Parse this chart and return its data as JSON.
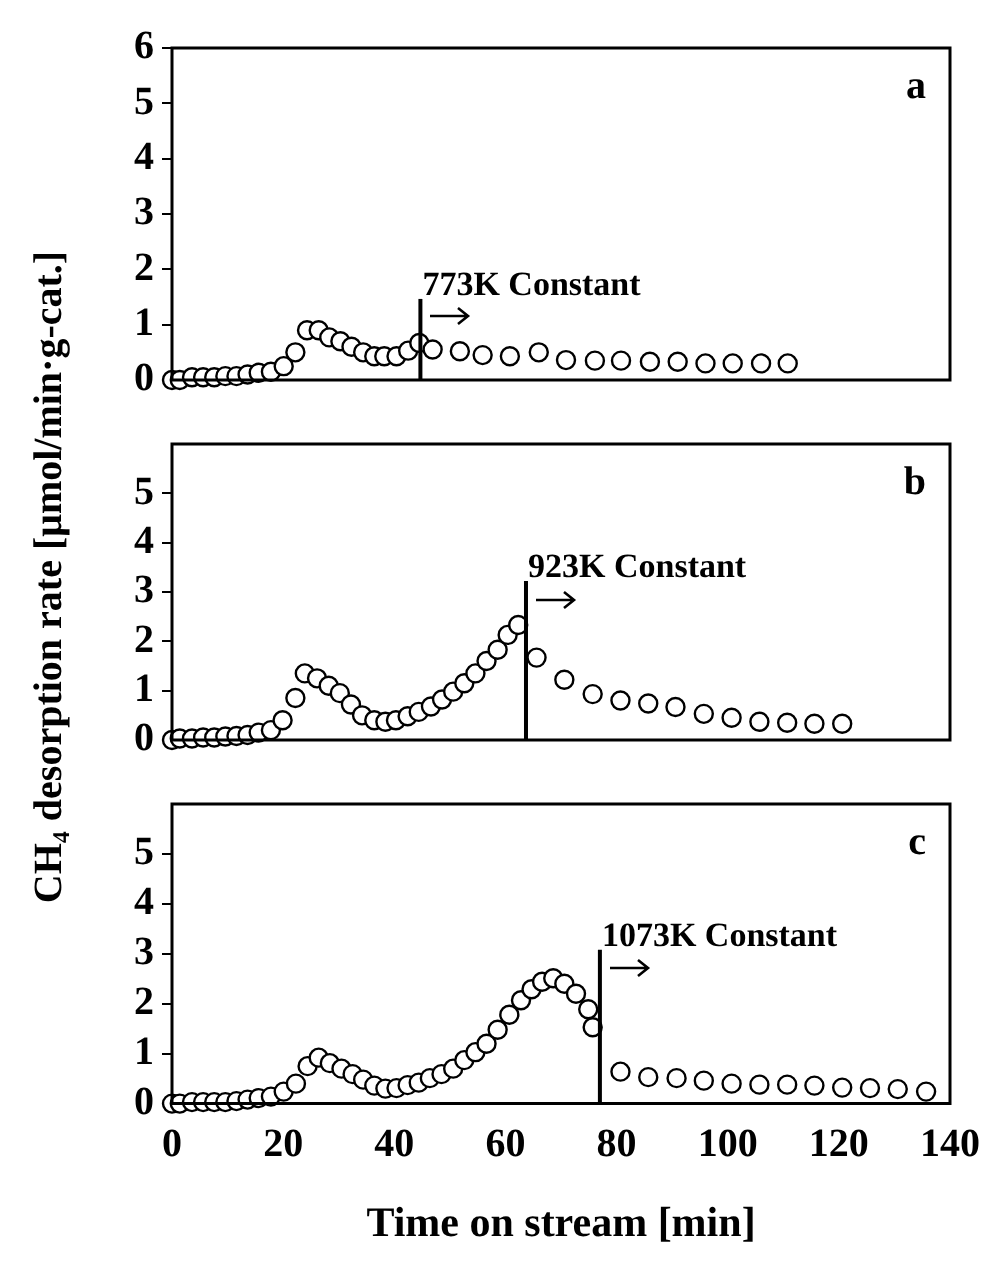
{
  "chart_data": [
    {
      "type": "scatter",
      "annotations": [
        "a"
      ],
      "xlim": [
        0,
        140
      ],
      "xticks": [
        0,
        20,
        40,
        60,
        80,
        100,
        120,
        140
      ],
      "ylim": [
        0,
        6
      ],
      "yticks": [
        0,
        1,
        2,
        3,
        4,
        5,
        6
      ],
      "tick_labels": "y",
      "marker": "circle",
      "grid": false,
      "legend": false,
      "ref_lines": [
        {
          "axis": "x",
          "value": 44.7,
          "label": "773K Constant"
        }
      ],
      "series": [
        {
          "color": "#000000",
          "x": [
            0,
            1.4,
            3.6,
            5.6,
            7.6,
            9.6,
            11.6,
            13.6,
            15.6,
            17.8,
            20.1,
            22.2,
            24.3,
            26.4,
            28.3,
            30.3,
            32.3,
            34.4,
            36.4,
            38.2,
            40.4,
            42.5,
            44.5,
            46.9,
            51.8,
            55.9,
            60.8,
            66,
            70.9,
            76.1,
            80.8,
            86,
            91,
            96,
            100.9,
            106,
            110.8
          ],
          "values": [
            0,
            0,
            0.05,
            0.05,
            0.05,
            0.07,
            0.07,
            0.1,
            0.13,
            0.15,
            0.25,
            0.5,
            0.9,
            0.9,
            0.77,
            0.7,
            0.6,
            0.5,
            0.43,
            0.43,
            0.43,
            0.53,
            0.67,
            0.55,
            0.52,
            0.45,
            0.43,
            0.5,
            0.36,
            0.35,
            0.35,
            0.33,
            0.33,
            0.3,
            0.3,
            0.3,
            0.3
          ]
        }
      ]
    },
    {
      "type": "scatter",
      "annotations": [
        "b"
      ],
      "ylabel": "CH₄ desorption rate [μmol/min·g-cat.]",
      "xlim": [
        0,
        140
      ],
      "xticks": [
        0,
        20,
        40,
        60,
        80,
        100,
        120,
        140
      ],
      "ylim": [
        0,
        6
      ],
      "yticks": [
        0,
        1,
        2,
        3,
        4,
        5
      ],
      "tick_labels": "y",
      "marker": "circle",
      "grid": false,
      "legend": false,
      "ref_lines": [
        {
          "axis": "x",
          "value": 63.7,
          "label": "923K Constant"
        }
      ],
      "series": [
        {
          "color": "#000000",
          "x": [
            0,
            1.4,
            3.6,
            5.6,
            7.6,
            9.6,
            11.6,
            13.6,
            15.6,
            17.8,
            19.9,
            22.2,
            23.9,
            26.1,
            28.2,
            30.2,
            32.2,
            34.2,
            36.4,
            38.4,
            40.3,
            42.4,
            44.4,
            46.6,
            48.6,
            50.6,
            52.6,
            54.6,
            56.6,
            58.6,
            60.4,
            62.3,
            65.6,
            70.6,
            75.7,
            80.7,
            85.7,
            90.6,
            95.7,
            100.7,
            105.7,
            110.7,
            115.6,
            120.6
          ],
          "values": [
            0,
            0.03,
            0.03,
            0.05,
            0.05,
            0.07,
            0.08,
            0.1,
            0.15,
            0.2,
            0.4,
            0.85,
            1.35,
            1.25,
            1.1,
            0.95,
            0.72,
            0.5,
            0.4,
            0.37,
            0.4,
            0.48,
            0.57,
            0.68,
            0.82,
            0.98,
            1.15,
            1.35,
            1.6,
            1.83,
            2.13,
            2.33,
            1.67,
            1.22,
            0.93,
            0.8,
            0.74,
            0.67,
            0.53,
            0.45,
            0.37,
            0.35,
            0.33,
            0.33
          ]
        }
      ]
    },
    {
      "type": "scatter",
      "annotations": [
        "c"
      ],
      "xlabel": "Time on stream [min]",
      "xlim": [
        0,
        140
      ],
      "xticks": [
        0,
        20,
        40,
        60,
        80,
        100,
        120,
        140
      ],
      "ylim": [
        0,
        6
      ],
      "yticks": [
        0,
        1,
        2,
        3,
        4,
        5
      ],
      "marker": "circle",
      "grid": false,
      "legend": false,
      "ref_lines": [
        {
          "axis": "x",
          "value": 77,
          "label": "1073K Constant"
        }
      ],
      "series": [
        {
          "color": "#000000",
          "x": [
            0,
            1.4,
            3.6,
            5.6,
            7.6,
            9.6,
            11.6,
            13.6,
            15.6,
            17.8,
            20.1,
            22.3,
            24.4,
            26.4,
            28.4,
            30.5,
            32.5,
            34.4,
            36.4,
            38.4,
            40.4,
            42.4,
            44.4,
            46.4,
            48.5,
            50.6,
            52.6,
            54.6,
            56.6,
            58.6,
            60.7,
            62.8,
            64.7,
            66.6,
            68.6,
            70.6,
            72.7,
            74.9,
            75.7,
            80.7,
            85.7,
            90.8,
            95.7,
            100.7,
            105.7,
            110.7,
            115.6,
            120.6,
            125.6,
            130.6,
            135.7
          ],
          "values": [
            0,
            0,
            0.03,
            0.03,
            0.03,
            0.03,
            0.05,
            0.08,
            0.11,
            0.14,
            0.24,
            0.4,
            0.75,
            0.92,
            0.81,
            0.7,
            0.59,
            0.48,
            0.36,
            0.3,
            0.31,
            0.37,
            0.42,
            0.51,
            0.59,
            0.7,
            0.87,
            1.03,
            1.2,
            1.48,
            1.78,
            2.07,
            2.29,
            2.44,
            2.51,
            2.4,
            2.2,
            1.89,
            1.53,
            0.64,
            0.53,
            0.51,
            0.46,
            0.4,
            0.38,
            0.38,
            0.36,
            0.32,
            0.31,
            0.29,
            0.24
          ]
        }
      ]
    }
  ]
}
